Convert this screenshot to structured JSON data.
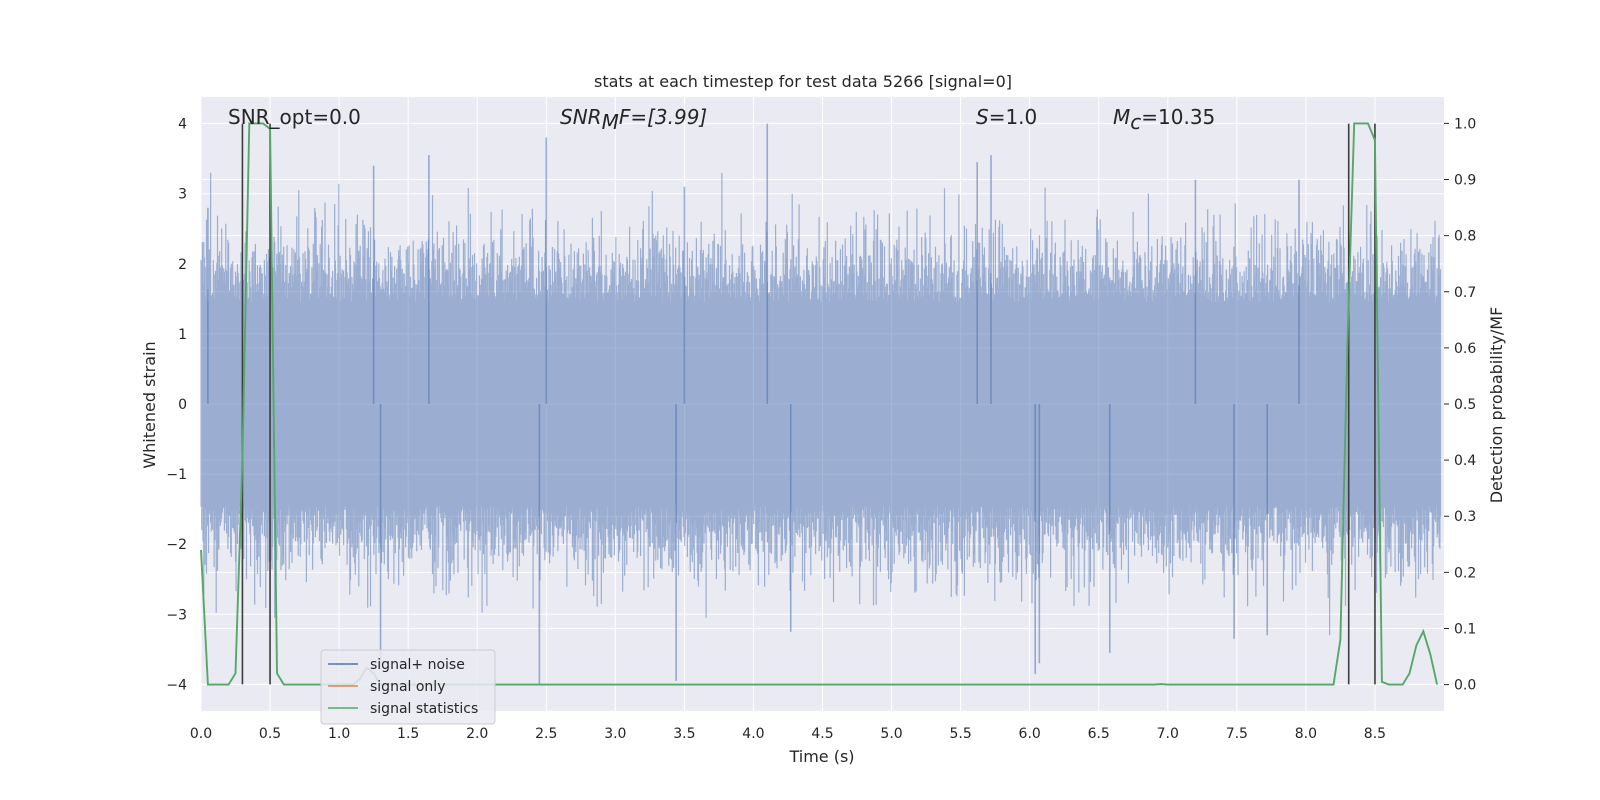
{
  "chart_data": {
    "type": "line",
    "title": "stats at each timestep for test data 5266 [signal=0]",
    "xlabel": "Time (s)",
    "ylabel": "Whitened strain",
    "ylabel_right": "Detection probability/MF",
    "xlim": [
      0.0,
      9.0
    ],
    "ylim": [
      -4.38,
      4.38
    ],
    "ylim_right": [
      -0.047,
      1.047
    ],
    "xticks": [
      "0.0",
      "0.5",
      "1.0",
      "1.5",
      "2.0",
      "2.5",
      "3.0",
      "3.5",
      "4.0",
      "4.5",
      "5.0",
      "5.5",
      "6.0",
      "6.5",
      "7.0",
      "7.5",
      "8.0",
      "8.5"
    ],
    "yticks": [
      "4",
      "3",
      "2",
      "1",
      "0",
      "−1",
      "−2",
      "−3",
      "−4"
    ],
    "yticks_right": [
      "1.0",
      "0.9",
      "0.8",
      "0.7",
      "0.6",
      "0.5",
      "0.4",
      "0.3",
      "0.2",
      "0.1",
      "0.0"
    ],
    "grid": true,
    "legend_position": "lower-left",
    "colors": {
      "noise": "#4c72b0",
      "signal_only": "#dd8452",
      "statistics": "#55a868",
      "markers": "#3d3d3d",
      "background": "#eaeaf2",
      "grid": "#ffffff"
    },
    "annotations": {
      "snr_opt": "SNR_opt=0.0",
      "snr_mf_label": "SNR",
      "snr_mf_sub": "M",
      "snr_mf_rest": "F=[3.99]",
      "s_label": "S",
      "s_value": "=1.0",
      "mc_label": "M",
      "mc_sub": "c",
      "mc_value": "=10.35"
    },
    "legend": [
      {
        "label": "signal+ noise",
        "color": "#4c72b0"
      },
      {
        "label": "signal only",
        "color": "#dd8452"
      },
      {
        "label": "signal statistics",
        "color": "#55a868"
      }
    ],
    "series": [
      {
        "name": "signal+ noise",
        "style": "whitened noise, approximately ±2 typical amplitude",
        "envelope_peaks": [
          {
            "x": 2.5,
            "y": 3.8
          },
          {
            "x": 4.1,
            "y": 4.0
          },
          {
            "x": 1.65,
            "y": 3.55
          },
          {
            "x": 1.25,
            "y": 3.4
          },
          {
            "x": 5.62,
            "y": 3.45
          },
          {
            "x": 5.72,
            "y": 3.55
          },
          {
            "x": 3.5,
            "y": 3.1
          },
          {
            "x": 7.2,
            "y": 3.2
          },
          {
            "x": 7.95,
            "y": 3.2
          },
          {
            "x": 0.05,
            "y": 2.8
          },
          {
            "x": 2.45,
            "y": -4.0
          },
          {
            "x": 3.44,
            "y": -3.95
          },
          {
            "x": 6.04,
            "y": -3.85
          },
          {
            "x": 6.07,
            "y": -3.7
          },
          {
            "x": 6.58,
            "y": -3.55
          },
          {
            "x": 4.27,
            "y": -3.25
          },
          {
            "x": 7.48,
            "y": -3.35
          },
          {
            "x": 7.72,
            "y": -3.3
          },
          {
            "x": 1.3,
            "y": -3.8
          }
        ]
      },
      {
        "name": "signal only",
        "values": []
      },
      {
        "name": "signal statistics",
        "axis": "right",
        "x": [
          0.0,
          0.05,
          0.1,
          0.15,
          0.2,
          0.25,
          0.3,
          0.35,
          0.4,
          0.45,
          0.5,
          0.55,
          0.6,
          0.65,
          0.7,
          0.75,
          1.1,
          1.15,
          1.2,
          1.25,
          1.3,
          1.35,
          6.9,
          6.95,
          7.0,
          7.05,
          8.2,
          8.25,
          8.3,
          8.35,
          8.4,
          8.45,
          8.5,
          8.55,
          8.6,
          8.65,
          8.7,
          8.75,
          8.8,
          8.85,
          8.9,
          8.95
        ],
        "y": [
          0.24,
          0.0,
          0.0,
          0.0,
          0.0,
          0.02,
          0.4,
          1.0,
          1.0,
          1.0,
          0.99,
          0.02,
          0.0,
          0.0,
          0.0,
          0.0,
          0.0,
          0.01,
          0.03,
          0.02,
          0.0,
          0.0,
          0.0,
          0.001,
          0.0,
          0.0,
          0.0,
          0.08,
          0.6,
          1.0,
          1.0,
          1.0,
          0.97,
          0.005,
          0.0,
          0.0,
          0.0,
          0.02,
          0.07,
          0.095,
          0.055,
          0.0
        ]
      }
    ],
    "vertical_markers": [
      {
        "x": 0.3,
        "y_from": -4.0,
        "y_to": 4.0
      },
      {
        "x": 0.5,
        "y_from": -4.0,
        "y_to": 4.0
      },
      {
        "x": 8.31,
        "y_from": -4.0,
        "y_to": 4.0
      },
      {
        "x": 8.5,
        "y_from": -4.0,
        "y_to": 4.0
      }
    ]
  }
}
